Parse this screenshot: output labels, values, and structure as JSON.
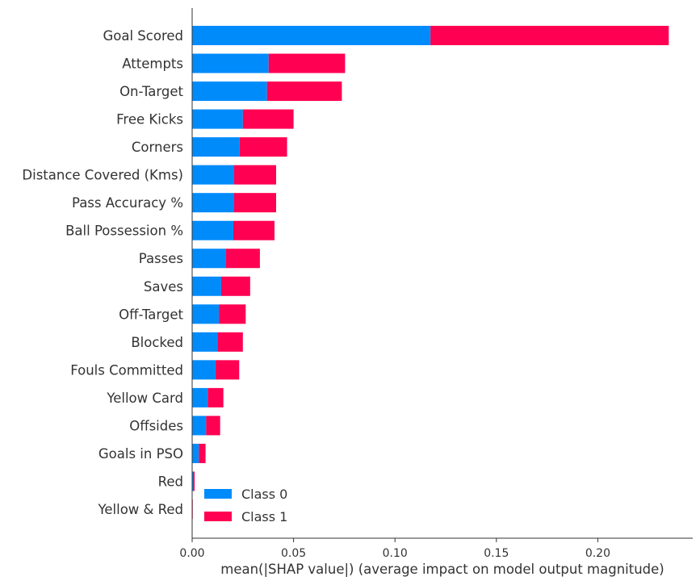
{
  "chart_data": {
    "type": "bar",
    "orientation": "horizontal",
    "stacked": true,
    "xlabel": "mean(|SHAP value|) (average impact on model output magnitude)",
    "ylabel": "",
    "title": "",
    "xlim": [
      0.0,
      0.247
    ],
    "xticks": [
      "0.00",
      "0.05",
      "0.10",
      "0.15",
      "0.20"
    ],
    "xtick_values": [
      0.0,
      0.05,
      0.1,
      0.15,
      0.2
    ],
    "grid": false,
    "legend_position": "bottom-left",
    "categories": [
      "Goal Scored",
      "Attempts",
      "On-Target",
      "Free Kicks",
      "Corners",
      "Distance Covered (Kms)",
      "Pass Accuracy %",
      "Ball Possession %",
      "Passes",
      "Saves",
      "Off-Target",
      "Blocked",
      "Fouls Committed",
      "Yellow Card",
      "Offsides",
      "Goals in PSO",
      "Red",
      "Yellow & Red"
    ],
    "series": [
      {
        "name": "Class 0",
        "color": "#008bfb",
        "values": [
          0.1175,
          0.0377,
          0.0369,
          0.025,
          0.0234,
          0.0207,
          0.0207,
          0.0203,
          0.0167,
          0.0143,
          0.0132,
          0.0125,
          0.0116,
          0.0077,
          0.0069,
          0.0033,
          0.0006,
          0.0001
        ]
      },
      {
        "name": "Class 1",
        "color": "#ff0052",
        "values": [
          0.1175,
          0.0377,
          0.0369,
          0.025,
          0.0234,
          0.0207,
          0.0207,
          0.0203,
          0.0167,
          0.0143,
          0.0132,
          0.0125,
          0.0116,
          0.0077,
          0.0069,
          0.0033,
          0.0006,
          0.0001
        ]
      }
    ]
  }
}
